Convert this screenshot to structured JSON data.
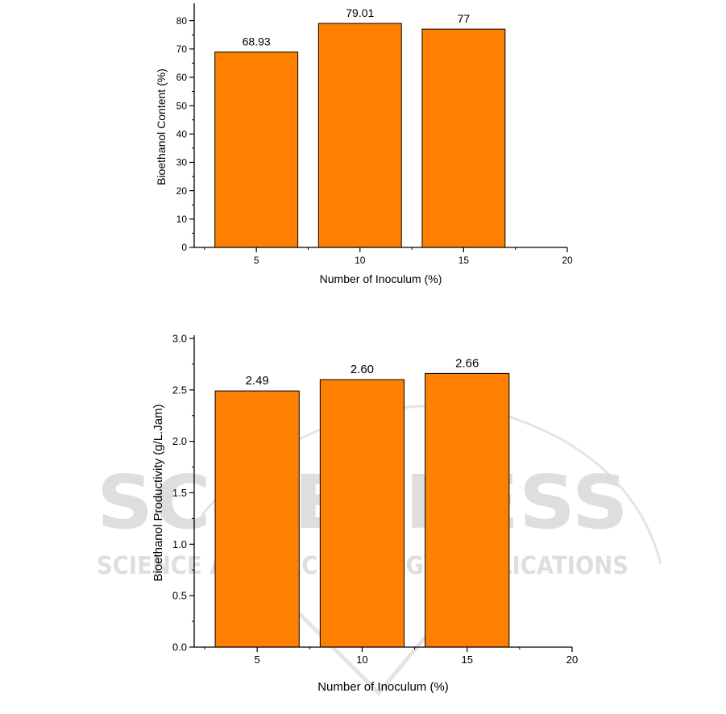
{
  "watermark": {
    "main": "SCITEPRESS",
    "sub": "SCIENCE AND TECHNOLOGY PUBLICATIONS"
  },
  "colors": {
    "bar": "#ff8000",
    "bar_stroke": "#000000",
    "watermark": "#dedede"
  },
  "chart_data": [
    {
      "type": "bar",
      "x": [
        5,
        10,
        15
      ],
      "values": [
        68.93,
        79.01,
        77
      ],
      "data_labels": [
        "68.93",
        "79.01",
        "77"
      ],
      "xlabel": "Number of Inoculum (%)",
      "ylabel": "Bioethanol Content (%)",
      "xlim": [
        2,
        20
      ],
      "ylim": [
        0,
        85
      ],
      "xticks": [
        5,
        10,
        15,
        20
      ],
      "xtick_labels": [
        "5",
        "10",
        "15",
        "20"
      ],
      "yticks": [
        0,
        10,
        20,
        30,
        40,
        50,
        60,
        70,
        80
      ],
      "ytick_labels": [
        "0",
        "10",
        "20",
        "30",
        "40",
        "50",
        "60",
        "70",
        "80"
      ],
      "bar_width": 4,
      "grid": false,
      "legend": "none"
    },
    {
      "type": "bar",
      "x": [
        5,
        10,
        15
      ],
      "values": [
        2.49,
        2.6,
        2.66
      ],
      "data_labels": [
        "2.49",
        "2.60",
        "2.66"
      ],
      "xlabel": "Number of Inoculum (%)",
      "ylabel": "Bioethanol Productivity (g/L.Jam)",
      "xlim": [
        2,
        20
      ],
      "ylim": [
        0,
        3.0
      ],
      "xticks": [
        5,
        10,
        15,
        20
      ],
      "xtick_labels": [
        "5",
        "10",
        "15",
        "20"
      ],
      "yticks": [
        0,
        0.5,
        1.0,
        1.5,
        2.0,
        2.5,
        3.0
      ],
      "ytick_labels": [
        "0.0",
        "0.5",
        "1.0",
        "1.5",
        "2.0",
        "2.5",
        "3.0"
      ],
      "bar_width": 4,
      "grid": false,
      "legend": "none"
    }
  ]
}
